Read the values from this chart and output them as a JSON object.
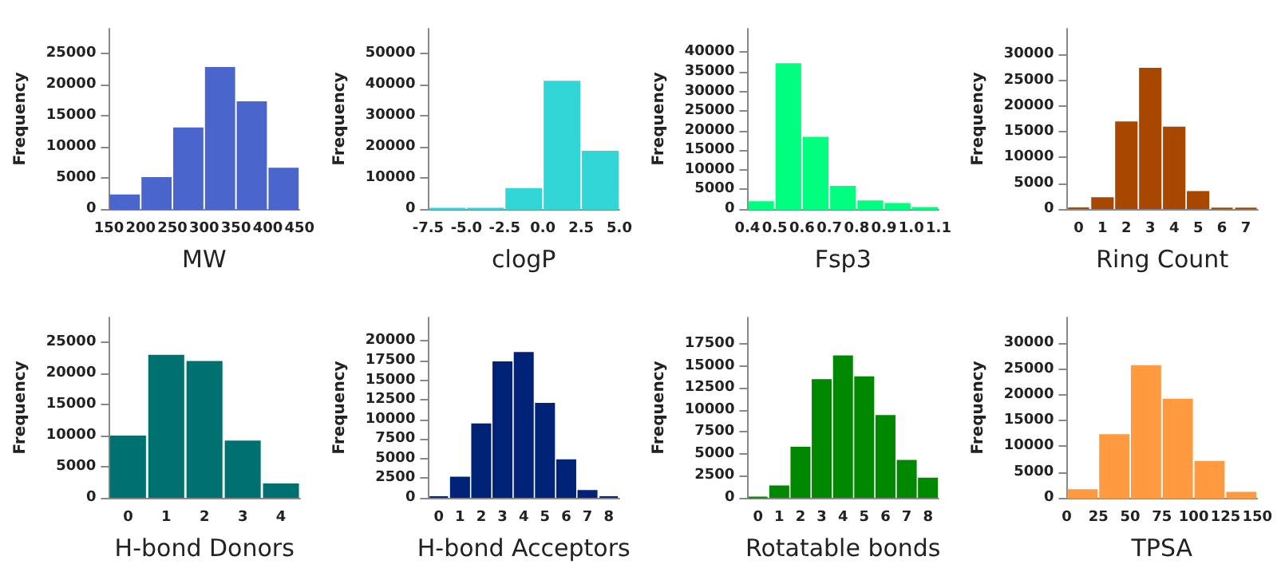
{
  "chart_data": [
    {
      "type": "histogram",
      "xlabel": "MW",
      "ylabel": "Frequency",
      "color": "#4a66cc",
      "bins": [
        150,
        200,
        250,
        300,
        350,
        400,
        450
      ],
      "values": [
        2200,
        5000,
        13000,
        22700,
        17200,
        6500
      ],
      "xlim": [
        150,
        450
      ],
      "xticks": [
        150,
        200,
        250,
        300,
        350,
        400,
        450
      ],
      "ylim": [
        0,
        29000
      ],
      "yticks": [
        0,
        5000,
        10000,
        15000,
        20000,
        25000
      ],
      "grid": false
    },
    {
      "type": "histogram",
      "xlabel": "clogP",
      "ylabel": "Frequency",
      "color": "#33d6d6",
      "bins": [
        -7.5,
        -5,
        -2.5,
        0,
        2.5,
        5
      ],
      "values": [
        100,
        100,
        6500,
        41000,
        18500
      ],
      "xlim": [
        -7.5,
        5
      ],
      "xticks": [
        {
          "value": -7.5,
          "label": "-7.5"
        },
        {
          "value": -5,
          "label": "-5.0"
        },
        {
          "value": -2.5,
          "label": "-2.5"
        },
        {
          "value": 0,
          "label": "0.0"
        },
        {
          "value": 2.5,
          "label": "2.5"
        },
        {
          "value": 5,
          "label": "5.0"
        }
      ],
      "ylim": [
        0,
        58000
      ],
      "yticks": [
        0,
        10000,
        20000,
        30000,
        40000,
        50000
      ],
      "grid": false
    },
    {
      "type": "histogram",
      "xlabel": "Fsp3",
      "ylabel": "Frequency",
      "color": "#00ff7f",
      "bins": [
        0.4,
        0.5,
        0.6,
        0.7,
        0.8,
        0.9,
        1.0,
        1.1
      ],
      "values": [
        1800,
        37000,
        18200,
        5700,
        2000,
        1300,
        300
      ],
      "xlim": [
        0.4,
        1.1
      ],
      "xticks": [
        0.4,
        0.5,
        0.6,
        0.7,
        0.8,
        0.9,
        {
          "value": 1.0,
          "label": "1.0"
        },
        1.1
      ],
      "ylim": [
        0,
        46000
      ],
      "yticks": [
        0,
        5000,
        10000,
        15000,
        20000,
        25000,
        30000,
        35000,
        40000
      ],
      "grid": false
    },
    {
      "type": "bar",
      "xlabel": "Ring Count",
      "ylabel": "Frequency",
      "color": "#a84800",
      "categories": [
        "0",
        "1",
        "2",
        "3",
        "4",
        "5",
        "6",
        "7"
      ],
      "values": [
        300,
        2300,
        17000,
        27400,
        16000,
        3500,
        200,
        200
      ],
      "ylim": [
        0,
        35000
      ],
      "yticks": [
        0,
        5000,
        10000,
        15000,
        20000,
        25000,
        30000
      ],
      "grid": false
    },
    {
      "type": "bar",
      "xlabel": "H-bond Donors",
      "ylabel": "Frequency",
      "color": "#007070",
      "categories": [
        "0",
        "1",
        "2",
        "3",
        "4"
      ],
      "values": [
        10000,
        23000,
        22000,
        9200,
        2300
      ],
      "ylim": [
        0,
        29000
      ],
      "yticks": [
        0,
        5000,
        10000,
        15000,
        20000,
        25000
      ],
      "grid": false
    },
    {
      "type": "bar",
      "xlabel": "H-bond Acceptors",
      "ylabel": "Frequency",
      "color": "#002277",
      "categories": [
        "0",
        "1",
        "2",
        "3",
        "4",
        "5",
        "6",
        "7",
        "8"
      ],
      "values": [
        200,
        2700,
        9500,
        17400,
        18600,
        12100,
        4900,
        1000,
        200
      ],
      "ylim": [
        0,
        23000
      ],
      "yticks": [
        0,
        2500,
        5000,
        7500,
        10000,
        12500,
        15000,
        17500,
        20000
      ],
      "grid": false
    },
    {
      "type": "bar",
      "xlabel": "Rotatable bonds",
      "ylabel": "Frequency",
      "color": "#008800",
      "categories": [
        "0",
        "1",
        "2",
        "3",
        "4",
        "5",
        "6",
        "7",
        "8"
      ],
      "values": [
        100,
        1400,
        5800,
        13500,
        16200,
        13800,
        9400,
        4300,
        2300
      ],
      "ylim": [
        0,
        20500
      ],
      "yticks": [
        0,
        2500,
        5000,
        7500,
        10000,
        12500,
        15000,
        17500
      ],
      "grid": false
    },
    {
      "type": "histogram",
      "xlabel": "TPSA",
      "ylabel": "Frequency",
      "color": "#ff9a40",
      "bins": [
        0,
        25,
        50,
        75,
        100,
        125,
        150
      ],
      "values": [
        1500,
        12200,
        25600,
        19100,
        7000,
        1000
      ],
      "xlim": [
        0,
        150
      ],
      "xticks": [
        0,
        25,
        50,
        75,
        100,
        125,
        150
      ],
      "ylim": [
        0,
        35000
      ],
      "yticks": [
        0,
        5000,
        10000,
        15000,
        20000,
        25000,
        30000
      ],
      "grid": false
    }
  ]
}
